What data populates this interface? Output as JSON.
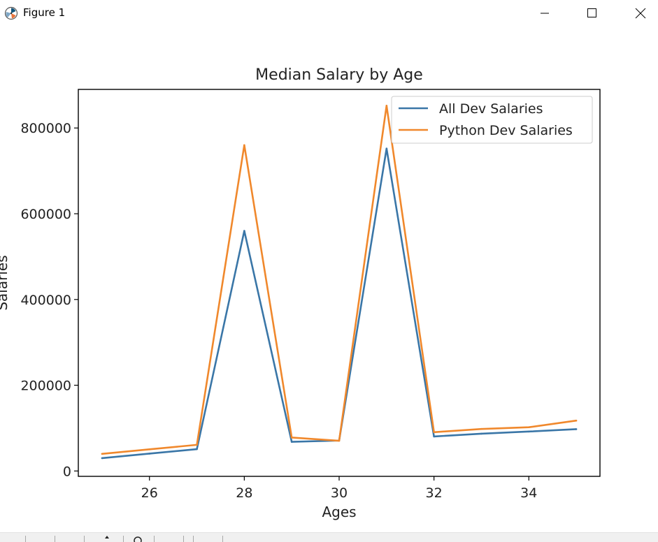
{
  "window": {
    "title": "Figure 1"
  },
  "icons": {
    "app": "matplotlib-figure-icon",
    "minimize": "minimize-icon",
    "maximize": "maximize-icon",
    "close": "close-icon",
    "toolbar": [
      "home-icon",
      "back-icon",
      "forward-icon",
      "pan-icon",
      "zoom-icon",
      "subplots-icon",
      "save-icon"
    ]
  },
  "chart_data": {
    "type": "line",
    "title": "Median Salary by Age",
    "xlabel": "Ages",
    "ylabel": "Salaries",
    "x": [
      25,
      26,
      27,
      28,
      29,
      30,
      31,
      32,
      33,
      34,
      35
    ],
    "xlim": [
      24.5,
      35.5
    ],
    "ylim": [
      -12500,
      890000
    ],
    "xticks": [
      26,
      28,
      30,
      32,
      34
    ],
    "yticks": [
      0,
      200000,
      400000,
      600000,
      800000
    ],
    "grid": false,
    "legend": "top-right",
    "series": [
      {
        "name": "All Dev Salaries",
        "color": "#3a76a7",
        "values": [
          30000,
          40500,
          51000,
          560000,
          68000,
          71000,
          752000,
          80500,
          87000,
          92000,
          97500
        ]
      },
      {
        "name": "Python Dev Salaries",
        "color": "#f0882c",
        "values": [
          40000,
          50500,
          61000,
          760000,
          78000,
          70500,
          852000,
          90500,
          98000,
          102000,
          117500
        ]
      }
    ]
  }
}
